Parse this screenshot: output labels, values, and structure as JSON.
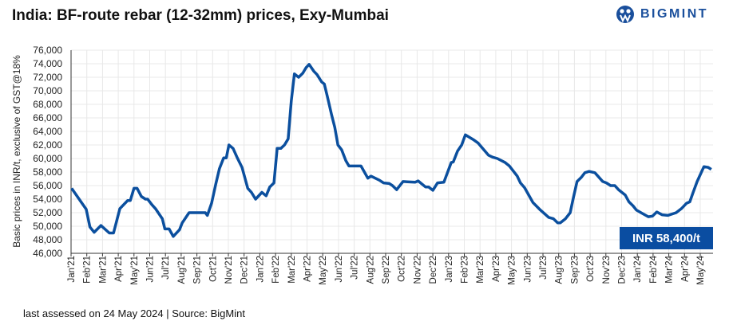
{
  "title": "India: BF-route rebar (12-32mm) prices, Exy-Mumbai",
  "logo": {
    "text": "BIGMINT",
    "color": "#1a4f9c"
  },
  "footer": "last assessed on 24 May 2024 | Source: BigMint",
  "badge": {
    "label": "INR 58,400/t",
    "color": "#0a4da1"
  },
  "chart_data": {
    "type": "line",
    "title": "India: BF-route rebar (12-32mm) prices, Exy-Mumbai",
    "xlabel": "",
    "ylabel": "Basic prices in INR/t,  exclusive of GST@18%",
    "ylim": [
      46000,
      76000
    ],
    "xlim": [
      "2021-01-01",
      "2024-05-24"
    ],
    "grid": true,
    "line_color": "#0b4f9e",
    "y_tick_labels": [
      "46,000",
      "48,000",
      "50,000",
      "52,000",
      "54,000",
      "56,000",
      "58,000",
      "60,000",
      "62,000",
      "64,000",
      "66,000",
      "68,000",
      "70,000",
      "72,000",
      "74,000",
      "76,000"
    ],
    "x_tick_labels": [
      "Jan'21",
      "Feb'21",
      "Mar'21",
      "Apr'21",
      "May'21",
      "Jun'21",
      "Jul'21",
      "Aug'21",
      "Sep'21",
      "Oct'21",
      "Nov'21",
      "Dec'21",
      "Jan'22",
      "Feb'22",
      "Mar'22",
      "Apr'22",
      "May'22",
      "Jun'22",
      "Jul'22",
      "Aug'22",
      "Sep'22",
      "Oct'22",
      "Nov'22",
      "Dec'22",
      "Jan'23",
      "Feb'23",
      "Mar'23",
      "Apr'23",
      "May'23",
      "Jun'23",
      "Jul'23",
      "Aug'23",
      "Sep'23",
      "Oct'23",
      "Nov'23",
      "Dec'23",
      "Jan'24",
      "Feb'24",
      "Mar'24",
      "Apr'24",
      "May'24"
    ],
    "series": [
      {
        "points": [
          [
            "2021-01-02",
            55600
          ],
          [
            "2021-01-30",
            52500
          ],
          [
            "2021-02-07",
            49900
          ],
          [
            "2021-02-15",
            49100
          ],
          [
            "2021-02-28",
            50100
          ],
          [
            "2021-03-14",
            49000
          ],
          [
            "2021-03-22",
            49000
          ],
          [
            "2021-04-04",
            52600
          ],
          [
            "2021-04-19",
            53800
          ],
          [
            "2021-04-24",
            53800
          ],
          [
            "2021-05-01",
            55600
          ],
          [
            "2021-05-07",
            55600
          ],
          [
            "2021-05-15",
            54400
          ],
          [
            "2021-05-23",
            54000
          ],
          [
            "2021-05-27",
            54000
          ],
          [
            "2021-06-05",
            53200
          ],
          [
            "2021-06-12",
            52600
          ],
          [
            "2021-06-25",
            51100
          ],
          [
            "2021-06-30",
            49600
          ],
          [
            "2021-07-08",
            49600
          ],
          [
            "2021-07-16",
            48500
          ],
          [
            "2021-07-28",
            49500
          ],
          [
            "2021-08-03",
            50500
          ],
          [
            "2021-08-16",
            52000
          ],
          [
            "2021-09-17",
            52000
          ],
          [
            "2021-09-21",
            51600
          ],
          [
            "2021-09-29",
            53400
          ],
          [
            "2021-10-07",
            56200
          ],
          [
            "2021-10-14",
            58500
          ],
          [
            "2021-10-22",
            60100
          ],
          [
            "2021-10-27",
            60100
          ],
          [
            "2021-11-02",
            62000
          ],
          [
            "2021-11-10",
            61500
          ],
          [
            "2021-11-18",
            60100
          ],
          [
            "2021-11-27",
            58700
          ],
          [
            "2021-12-08",
            55600
          ],
          [
            "2021-12-15",
            55000
          ],
          [
            "2021-12-23",
            54000
          ],
          [
            "2022-01-05",
            55000
          ],
          [
            "2022-01-13",
            54500
          ],
          [
            "2022-01-20",
            55800
          ],
          [
            "2022-01-28",
            56400
          ],
          [
            "2022-02-04",
            61500
          ],
          [
            "2022-02-11",
            61500
          ],
          [
            "2022-02-18",
            62000
          ],
          [
            "2022-02-25",
            62900
          ],
          [
            "2022-03-01",
            68500
          ],
          [
            "2022-03-07",
            72500
          ],
          [
            "2022-03-15",
            72000
          ],
          [
            "2022-03-23",
            72600
          ],
          [
            "2022-03-29",
            73400
          ],
          [
            "2022-04-05",
            73900
          ],
          [
            "2022-04-14",
            72900
          ],
          [
            "2022-04-20",
            72400
          ],
          [
            "2022-04-29",
            71300
          ],
          [
            "2022-05-04",
            71000
          ],
          [
            "2022-05-10",
            69100
          ],
          [
            "2022-05-18",
            66400
          ],
          [
            "2022-05-24",
            64600
          ],
          [
            "2022-05-30",
            62000
          ],
          [
            "2022-06-07",
            61300
          ],
          [
            "2022-06-15",
            59700
          ],
          [
            "2022-06-21",
            58900
          ],
          [
            "2022-07-14",
            58900
          ],
          [
            "2022-07-27",
            57100
          ],
          [
            "2022-08-03",
            57400
          ],
          [
            "2022-08-19",
            56800
          ],
          [
            "2022-08-27",
            56400
          ],
          [
            "2022-09-08",
            56300
          ],
          [
            "2022-09-14",
            56000
          ],
          [
            "2022-09-22",
            55400
          ],
          [
            "2022-10-04",
            56600
          ],
          [
            "2022-10-27",
            56500
          ],
          [
            "2022-11-03",
            56700
          ],
          [
            "2022-11-17",
            55800
          ],
          [
            "2022-11-23",
            55800
          ],
          [
            "2022-12-01",
            55300
          ],
          [
            "2022-12-10",
            56400
          ],
          [
            "2022-12-22",
            56500
          ],
          [
            "2023-01-06",
            59400
          ],
          [
            "2023-01-10",
            59500
          ],
          [
            "2023-01-18",
            61100
          ],
          [
            "2023-01-26",
            62000
          ],
          [
            "2023-02-03",
            63500
          ],
          [
            "2023-02-18",
            62800
          ],
          [
            "2023-02-27",
            62300
          ],
          [
            "2023-03-17",
            60500
          ],
          [
            "2023-03-25",
            60200
          ],
          [
            "2023-04-04",
            60000
          ],
          [
            "2023-04-19",
            59400
          ],
          [
            "2023-04-27",
            58900
          ],
          [
            "2023-05-12",
            57400
          ],
          [
            "2023-05-18",
            56400
          ],
          [
            "2023-05-26",
            55700
          ],
          [
            "2023-06-12",
            53500
          ],
          [
            "2023-06-26",
            52400
          ],
          [
            "2023-07-12",
            51300
          ],
          [
            "2023-07-21",
            51100
          ],
          [
            "2023-07-29",
            50500
          ],
          [
            "2023-08-04",
            50500
          ],
          [
            "2023-08-14",
            51100
          ],
          [
            "2023-08-23",
            52000
          ],
          [
            "2023-08-29",
            54200
          ],
          [
            "2023-09-06",
            56600
          ],
          [
            "2023-09-14",
            57200
          ],
          [
            "2023-09-21",
            57900
          ],
          [
            "2023-09-29",
            58100
          ],
          [
            "2023-10-10",
            57900
          ],
          [
            "2023-10-25",
            56600
          ],
          [
            "2023-11-02",
            56400
          ],
          [
            "2023-11-10",
            56000
          ],
          [
            "2023-11-18",
            56000
          ],
          [
            "2023-11-25",
            55400
          ],
          [
            "2023-12-08",
            54600
          ],
          [
            "2023-12-15",
            53600
          ],
          [
            "2023-12-23",
            53000
          ],
          [
            "2023-12-29",
            52400
          ],
          [
            "2024-01-08",
            52000
          ],
          [
            "2024-01-22",
            51400
          ],
          [
            "2024-01-30",
            51500
          ],
          [
            "2024-02-08",
            52100
          ],
          [
            "2024-02-18",
            51700
          ],
          [
            "2024-02-29",
            51600
          ],
          [
            "2024-03-15",
            52000
          ],
          [
            "2024-03-25",
            52600
          ],
          [
            "2024-04-05",
            53400
          ],
          [
            "2024-04-11",
            53600
          ],
          [
            "2024-04-17",
            54900
          ],
          [
            "2024-04-25",
            56600
          ],
          [
            "2024-05-08",
            58800
          ],
          [
            "2024-05-16",
            58700
          ],
          [
            "2024-05-22",
            58400
          ]
        ]
      }
    ]
  }
}
